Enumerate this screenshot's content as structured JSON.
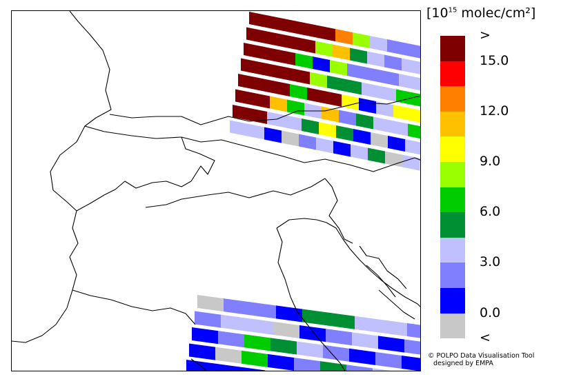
{
  "colorbar": {
    "unit_prefix": "[10",
    "unit_exp": "15",
    "unit_suffix": " molec/cm²]",
    "colors": [
      "#7f0000",
      "#ff0000",
      "#ff8000",
      "#ffc000",
      "#ffff00",
      "#99ff00",
      "#00cc00",
      "#008f33",
      "#c0c0ff",
      "#8080ff",
      "#0000ff",
      "#c8c8c8"
    ],
    "labels": [
      {
        "text": ">",
        "cell": 0
      },
      {
        "text": "15.0",
        "cell": 1
      },
      {
        "text": "12.0",
        "cell": 3
      },
      {
        "text": "9.0",
        "cell": 5
      },
      {
        "text": "6.0",
        "cell": 7
      },
      {
        "text": "3.0",
        "cell": 9
      },
      {
        "text": "0.0",
        "cell": 11
      },
      {
        "text": "<",
        "cell": 12
      }
    ]
  },
  "credits": {
    "line1": "© POLPO Data Visualisation Tool",
    "line2": "designed by EMPA"
  },
  "swaths": [
    {
      "name": "north-east-swath",
      "rows": [
        [
          "#7f0000",
          "#7f0000",
          "#7f0000",
          "#7f0000",
          "#7f0000",
          "#ff8000",
          "#99ff00",
          "#c0c0ff",
          "#8080ff",
          "#8080ff",
          "#8080ff"
        ],
        [
          "#7f0000",
          "#7f0000",
          "#7f0000",
          "#7f0000",
          "#99ff00",
          "#ffc000",
          "#008f33",
          "#c0c0ff",
          "#8080ff",
          "#c0c0ff",
          "#c0c0ff"
        ],
        [
          "#7f0000",
          "#7f0000",
          "#7f0000",
          "#00cc00",
          "#0000ff",
          "#99ff00",
          "#8080ff",
          "#8080ff",
          "#8080ff",
          "#c0c0ff",
          "#c0c0ff"
        ],
        [
          "#7f0000",
          "#7f0000",
          "#7f0000",
          "#7f0000",
          "#99ff00",
          "#008f33",
          "#008f33",
          "#c0c0ff",
          "#c0c0ff",
          "#00cc00",
          "#00cc00"
        ],
        [
          "#7f0000",
          "#7f0000",
          "#7f0000",
          "#00cc00",
          "#7f0000",
          "#7f0000",
          "#ffff00",
          "#0000ff",
          "#c0c0ff",
          "#ffff00",
          "#ffff00"
        ],
        [
          "#7f0000",
          "#7f0000",
          "#ffc000",
          "#00cc00",
          "#c0c0ff",
          "#ffc000",
          "#8080ff",
          "#008f33",
          "#c0c0ff",
          "#c0c0ff",
          "#00cc00"
        ],
        [
          "#7f0000",
          "#7f0000",
          "#c0c0ff",
          "#c0c0ff",
          "#008f33",
          "#ffff00",
          "#008f33",
          "#0000ff",
          "#c8c8c8",
          "#0000ff",
          "#c0c0ff"
        ],
        [
          "#c0c0ff",
          "#c0c0ff",
          "#0000ff",
          "#c8c8c8",
          "#8080ff",
          "#c0c0ff",
          "#0000ff",
          "#c0c0ff",
          "#008f33",
          "#c8c8c8",
          "#c0c0ff"
        ]
      ]
    },
    {
      "name": "south-swath",
      "rows": [
        [
          "#c8c8c8",
          "#8080ff",
          "#8080ff",
          "#0000ff",
          "#008f33",
          "#008f33",
          "#c0c0ff",
          "#c0c0ff",
          "#8080ff"
        ],
        [
          "#8080ff",
          "#c0c0ff",
          "#c0c0ff",
          "#c8c8c8",
          "#0000ff",
          "#8080ff",
          "#c0c0ff",
          "#0000ff",
          "#8080ff"
        ],
        [
          "#0000ff",
          "#8080ff",
          "#00cc00",
          "#008f33",
          "#c0c0ff",
          "#8080ff",
          "#0000ff",
          "#8080ff",
          "#0000ff"
        ],
        [
          "#0000ff",
          "#c8c8c8",
          "#00cc00",
          "#0000ff",
          "#8080ff",
          "#008f33",
          "#8080ff",
          "#c0c0ff",
          "#0000ff"
        ],
        [
          "#0000ff",
          "#0000ff",
          "#0000ff",
          "#c0c0ff",
          "#8080ff",
          "#0000ff",
          "#c0c0ff",
          "#c0c0ff",
          "#c0c0ff"
        ]
      ]
    }
  ]
}
